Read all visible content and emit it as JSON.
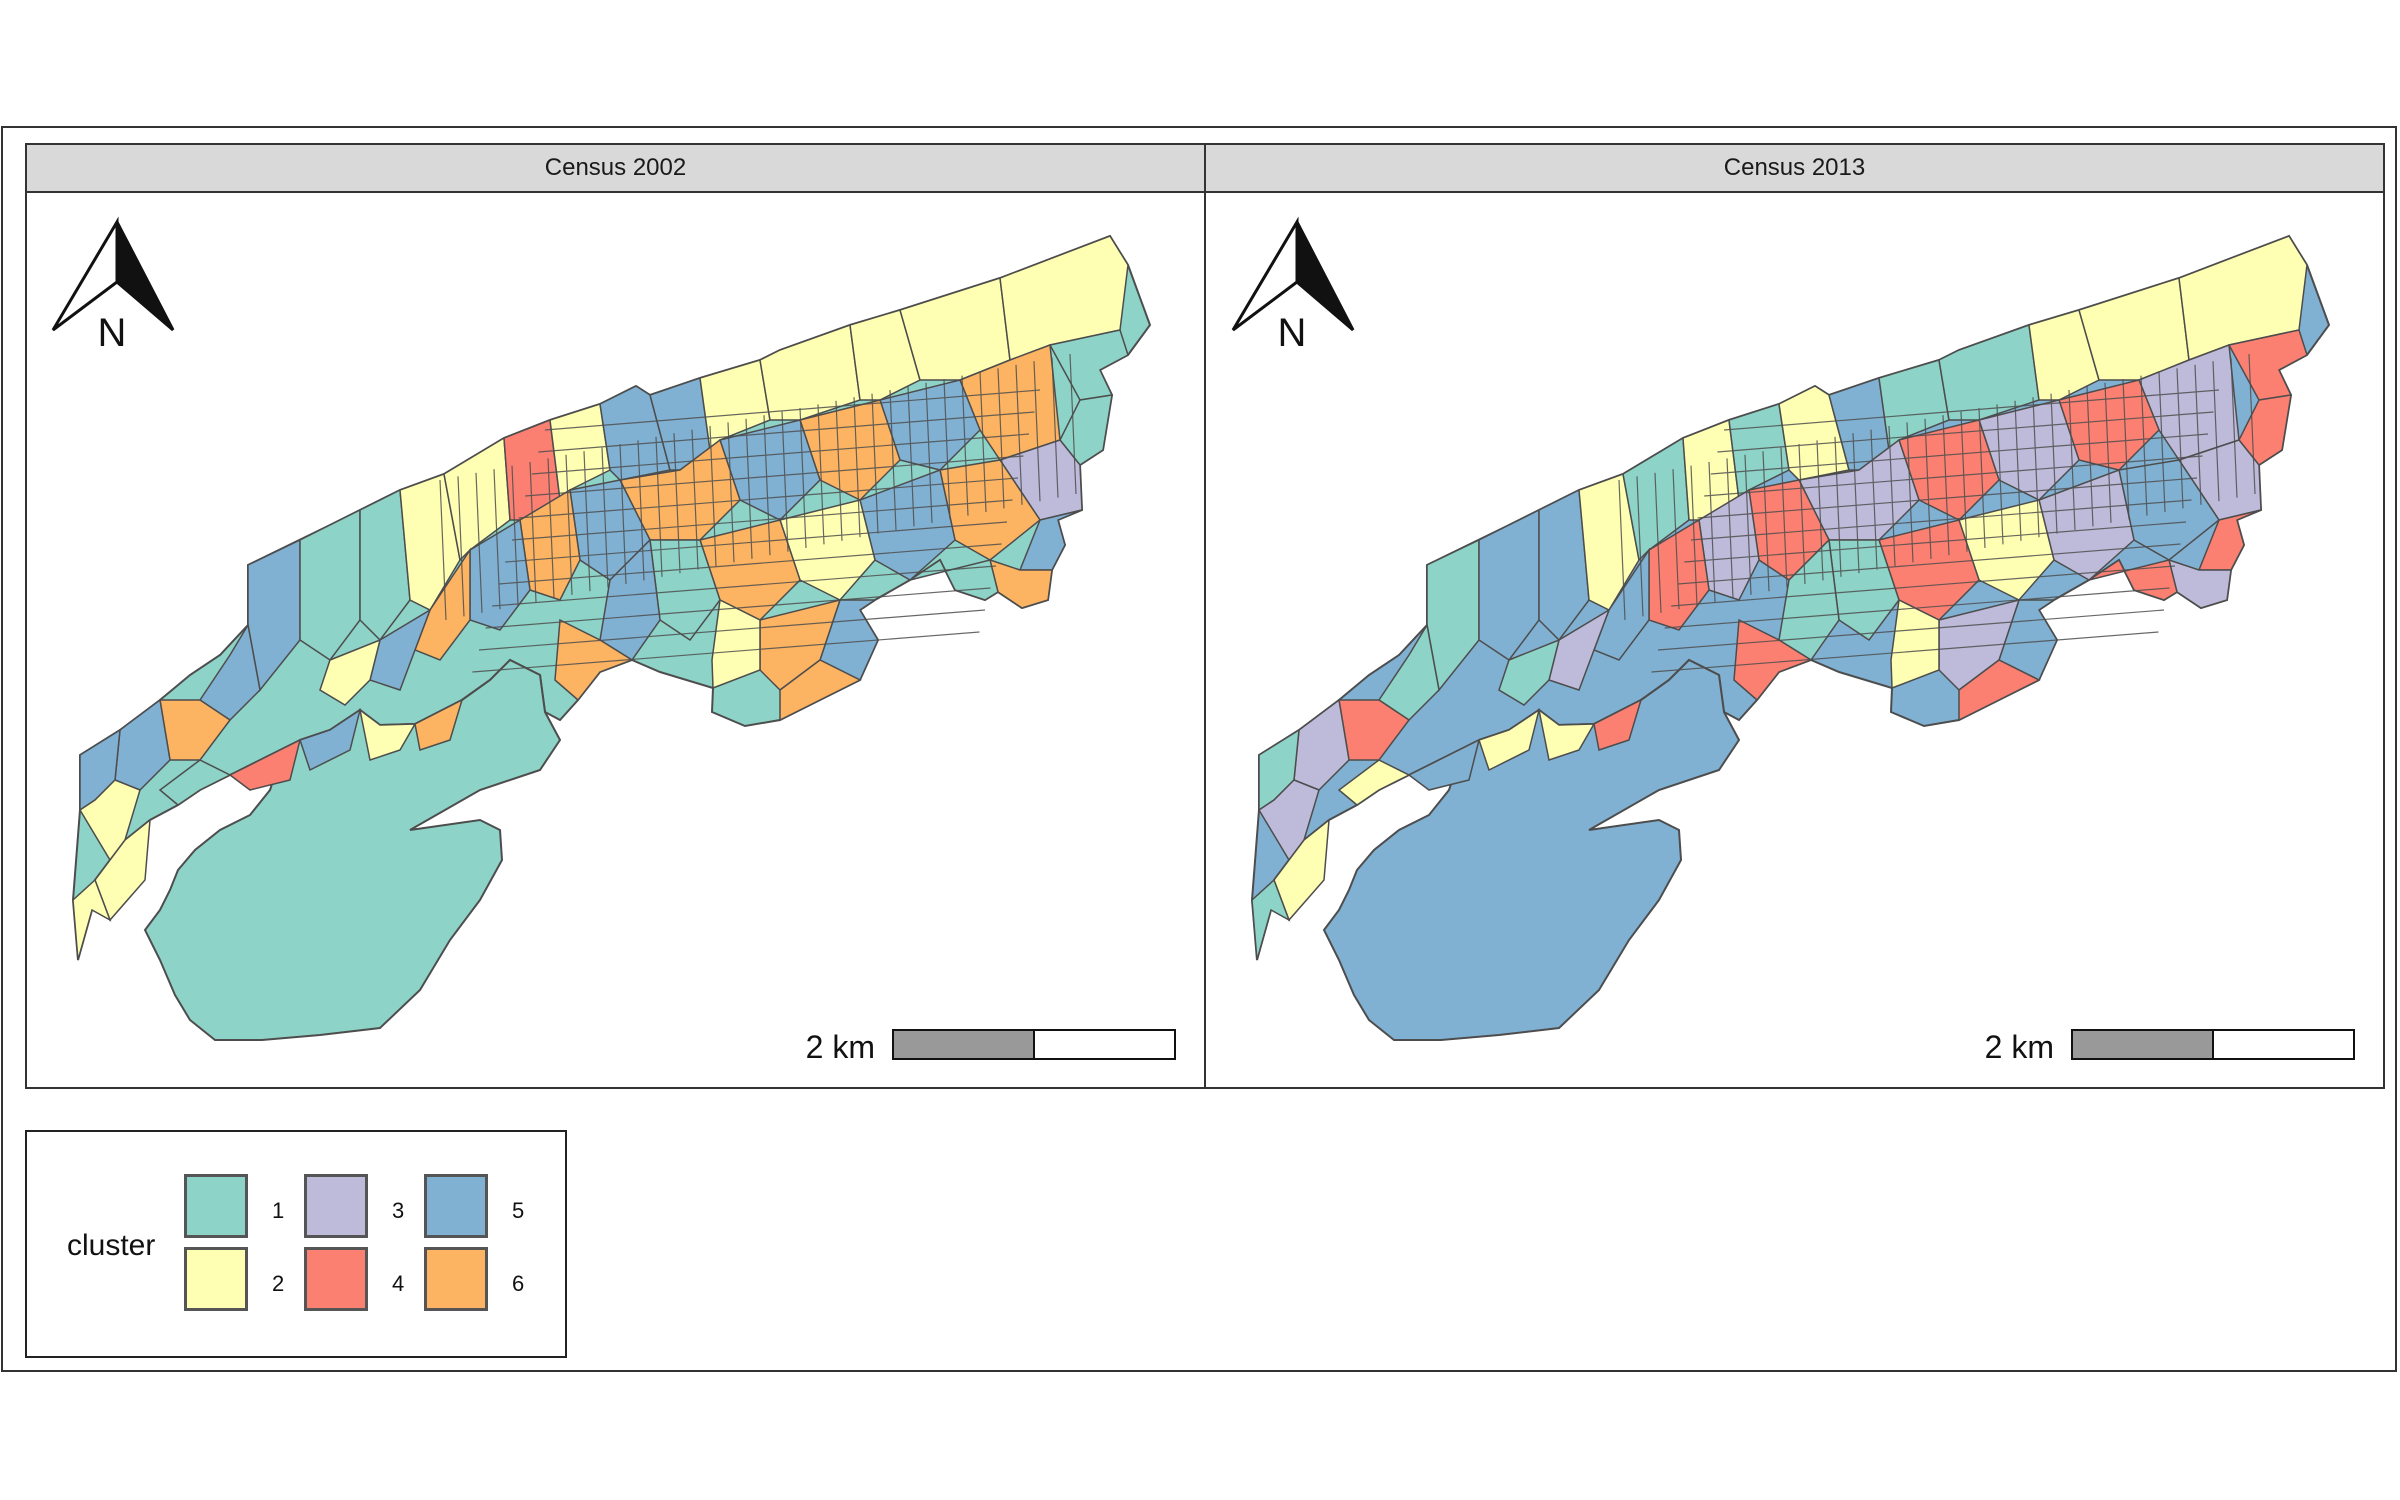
{
  "panels": [
    {
      "title": "Census 2002",
      "north_label": "N",
      "scale_label": "2 km"
    },
    {
      "title": "Census 2013",
      "north_label": "N",
      "scale_label": "2 km"
    }
  ],
  "legend": {
    "title": "cluster",
    "items": [
      {
        "label": "1",
        "color": "#8dd3c7"
      },
      {
        "label": "2",
        "color": "#ffffb3"
      },
      {
        "label": "3",
        "color": "#bebada"
      },
      {
        "label": "4",
        "color": "#fb8072"
      },
      {
        "label": "5",
        "color": "#80b1d3"
      },
      {
        "label": "6",
        "color": "#fdb462"
      }
    ]
  },
  "palette": {
    "1": "#8dd3c7",
    "2": "#ffffb3",
    "3": "#bebada",
    "4": "#fb8072",
    "5": "#80b1d3",
    "6": "#fdb462",
    "border": "#4d4d4d",
    "strip": "#d9d9d9"
  },
  "chart_data": [
    {
      "type": "choropleth",
      "title": "Census 2002",
      "variable": "cluster",
      "categories": [
        "1",
        "2",
        "3",
        "4",
        "5",
        "6"
      ],
      "dominant_clusters": [
        "1",
        "2",
        "5",
        "6"
      ]
    },
    {
      "type": "choropleth",
      "title": "Census 2013",
      "variable": "cluster",
      "categories": [
        "1",
        "2",
        "3",
        "4",
        "5",
        "6"
      ],
      "dominant_clusters": [
        "1",
        "2",
        "3",
        "4",
        "5"
      ]
    }
  ]
}
